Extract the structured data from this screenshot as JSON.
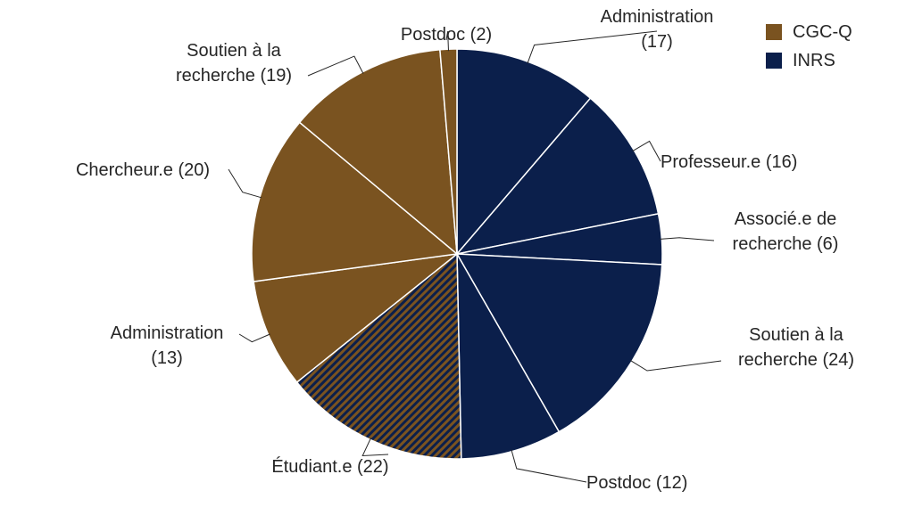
{
  "colors": {
    "cgcq": "#7a5320",
    "inrs": "#0b1f4b",
    "stripe_bg": "#7a5320",
    "stripe_fg": "#0b1f4b",
    "divider": "#ffffff",
    "leader": "#262626",
    "text": "#262626"
  },
  "legend": {
    "items": [
      {
        "label": "CGC-Q",
        "color": "#7a5320"
      },
      {
        "label": "INRS",
        "color": "#0b1f4b"
      }
    ]
  },
  "chart_data": {
    "type": "pie",
    "title": "",
    "start": "top",
    "direction": "clockwise",
    "slices": [
      {
        "label": "Administration (17)",
        "category": "Administration",
        "value": 17,
        "group": "INRS",
        "fill": "solid"
      },
      {
        "label": "Professeur.e (16)",
        "category": "Professeur.e",
        "value": 16,
        "group": "INRS",
        "fill": "solid"
      },
      {
        "label": "Associé.e de recherche (6)",
        "category": "Associé.e de recherche",
        "value": 6,
        "group": "INRS",
        "fill": "solid"
      },
      {
        "label": "Soutien à la recherche (24)",
        "category": "Soutien à la recherche",
        "value": 24,
        "group": "INRS",
        "fill": "solid"
      },
      {
        "label": "Postdoc (12)",
        "category": "Postdoc",
        "value": 12,
        "group": "INRS",
        "fill": "solid"
      },
      {
        "label": "Étudiant.e (22)",
        "category": "Étudiant.e",
        "value": 22,
        "group": "CGC-Q / INRS",
        "fill": "striped"
      },
      {
        "label": "Administration (13)",
        "category": "Administration",
        "value": 13,
        "group": "CGC-Q",
        "fill": "solid"
      },
      {
        "label": "Chercheur.e (20)",
        "category": "Chercheur.e",
        "value": 20,
        "group": "CGC-Q",
        "fill": "solid"
      },
      {
        "label": "Soutien à la recherche (19)",
        "category": "Soutien à la recherche",
        "value": 19,
        "group": "CGC-Q",
        "fill": "solid"
      },
      {
        "label": "Postdoc (2)",
        "category": "Postdoc",
        "value": 2,
        "group": "CGC-Q",
        "fill": "solid"
      }
    ],
    "label_lines": [
      [
        "Administration",
        "(17)"
      ],
      [
        "Professeur.e (16)"
      ],
      [
        "Associé.e de",
        "recherche (6)"
      ],
      [
        "Soutien à la",
        "recherche (24)"
      ],
      [
        "Postdoc (12)"
      ],
      [
        "Étudiant.e (22)"
      ],
      [
        "Administration",
        "(13)"
      ],
      [
        "Chercheur.e (20)"
      ],
      [
        "Soutien à la",
        "recherche (19)"
      ],
      [
        "Postdoc (2)"
      ]
    ],
    "legend_position": "top-right"
  }
}
